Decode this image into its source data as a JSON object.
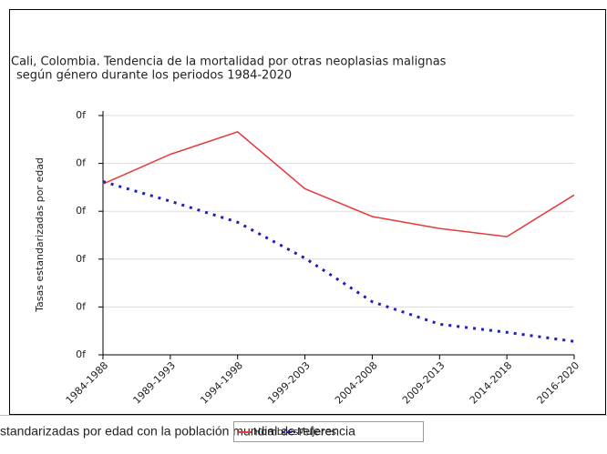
{
  "chart_data": {
    "type": "line",
    "title": "Cali, Colombia. Tendencia de la mortalidad por otras neoplasias malignas",
    "subtitle": "según género durante los periodos 1984-2020",
    "y_label": "Tasas estandarizadas por edad",
    "footer": "standarizadas por edad con la población mundial de referencia",
    "categories": [
      "1984-1988",
      "1989-1993",
      "1994-1998",
      "1999-2003",
      "2004-2008",
      "2009-2013",
      "2014-2018",
      "2016-2020"
    ],
    "series": [
      {
        "name": "Hombres",
        "color": "#e8393b",
        "style": "solid",
        "values": [
          3.57,
          4.19,
          4.66,
          3.47,
          2.89,
          2.64,
          2.47,
          3.34
        ]
      },
      {
        "name": "Mujeres",
        "color": "#1f1fbf",
        "style": "dotted",
        "values": [
          3.62,
          3.21,
          2.77,
          2.02,
          1.11,
          0.64,
          0.47,
          0.28
        ]
      }
    ],
    "ylim": [
      0,
      5
    ],
    "yticks": [
      {
        "value": 0,
        "label": "0f"
      },
      {
        "value": 1,
        "label": "0f"
      },
      {
        "value": 2,
        "label": "0f"
      },
      {
        "value": 3,
        "label": "0f"
      },
      {
        "value": 4,
        "label": "0f"
      },
      {
        "value": 5,
        "label": "0f"
      }
    ],
    "grid": true
  }
}
